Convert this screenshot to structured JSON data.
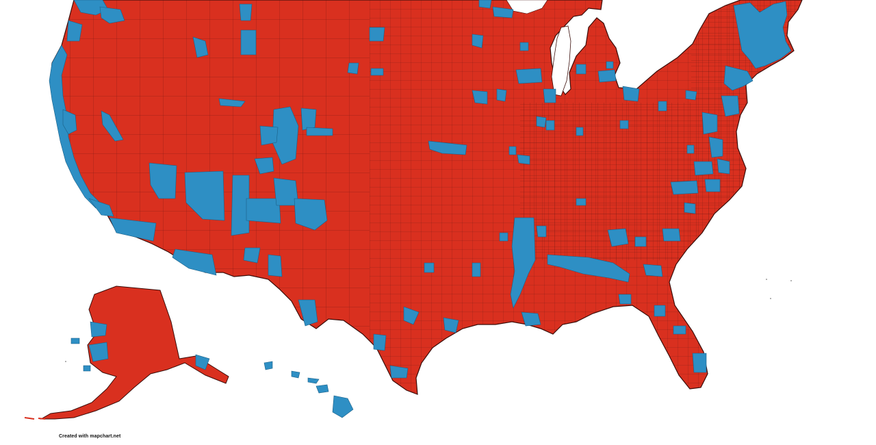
{
  "map": {
    "credit": "Created with mapchart.net",
    "colors": {
      "red": "#d9301f",
      "blue": "#2e8fc4",
      "border": "#5a1410",
      "background": "#ffffff"
    },
    "legend": []
  }
}
